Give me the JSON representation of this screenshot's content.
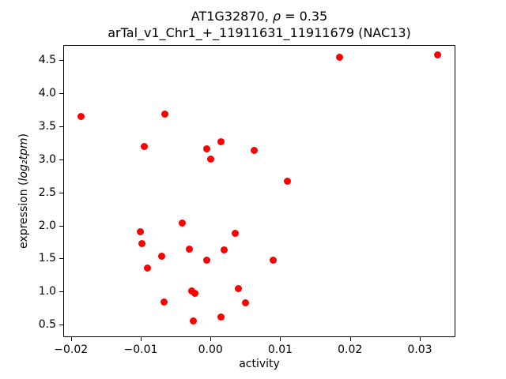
{
  "figure": {
    "title_line1": {
      "prefix": "AT1G32870, ",
      "rho": "ρ",
      "rest": " = 0.35"
    },
    "title_line2": "arTal_v1_Chr1_+_11911631_11911679 (NAC13)",
    "xlabel": "activity",
    "ylabel": {
      "prefix": "expression (",
      "math": "log₂tpm",
      "suffix": ")"
    }
  },
  "chart_data": {
    "type": "scatter",
    "title": "AT1G32870, ρ = 0.35",
    "subtitle": "arTal_v1_Chr1_+_11911631_11911679 (NAC13)",
    "xlabel": "activity",
    "ylabel": "expression (log2 tpm)",
    "marker_color": "#ff0000",
    "grid": false,
    "legend": null,
    "xlim": [
      -0.0211,
      0.0351
    ],
    "ylim": [
      0.31,
      4.73
    ],
    "x_ticks": [
      -0.02,
      -0.01,
      0.0,
      0.01,
      0.02,
      0.03
    ],
    "x_tick_labels": [
      "−0.02",
      "−0.01",
      "0.00",
      "0.01",
      "0.02",
      "0.03"
    ],
    "y_ticks": [
      0.5,
      1.0,
      1.5,
      2.0,
      2.5,
      3.0,
      3.5,
      4.0,
      4.5
    ],
    "y_tick_labels": [
      "0.5",
      "1.0",
      "1.5",
      "2.0",
      "2.5",
      "3.0",
      "3.5",
      "4.0",
      "4.5"
    ],
    "points": [
      [
        -0.0185,
        3.65
      ],
      [
        -0.0095,
        3.19
      ],
      [
        -0.0065,
        3.69
      ],
      [
        -0.0005,
        3.16
      ],
      [
        0.0015,
        3.27
      ],
      [
        0.0,
        3.0
      ],
      [
        0.0063,
        3.13
      ],
      [
        0.011,
        2.67
      ],
      [
        0.0185,
        4.55
      ],
      [
        0.0325,
        4.58
      ],
      [
        -0.01,
        1.91
      ],
      [
        -0.0098,
        1.72
      ],
      [
        -0.009,
        1.36
      ],
      [
        -0.007,
        1.53
      ],
      [
        -0.0067,
        0.84
      ],
      [
        -0.004,
        2.04
      ],
      [
        -0.003,
        1.64
      ],
      [
        -0.0027,
        1.01
      ],
      [
        -0.0022,
        0.97
      ],
      [
        -0.0025,
        0.56
      ],
      [
        -0.0005,
        1.47
      ],
      [
        0.0015,
        0.61
      ],
      [
        0.002,
        1.63
      ],
      [
        0.0035,
        1.88
      ],
      [
        0.004,
        1.05
      ],
      [
        0.005,
        0.83
      ],
      [
        0.009,
        1.47
      ]
    ]
  }
}
